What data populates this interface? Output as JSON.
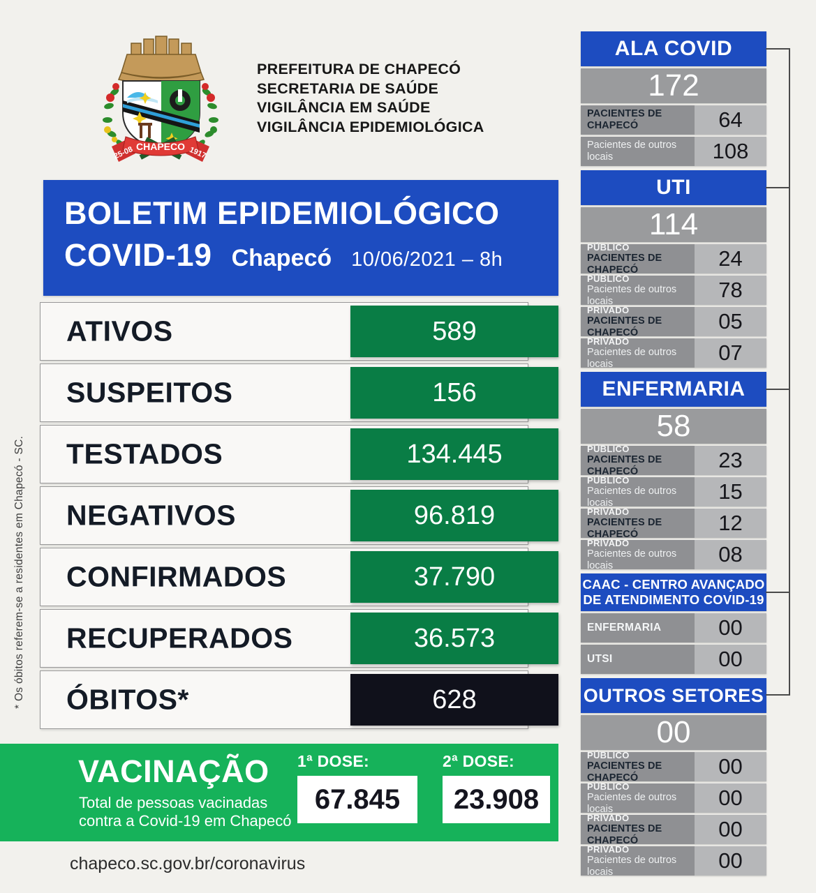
{
  "header": {
    "org_lines": [
      "PREFEITURA DE CHAPECÓ",
      "SECRETARIA DE SAÚDE",
      "VIGILÂNCIA EM SAÚDE",
      "VIGILÂNCIA EPIDEMIOLÓGICA"
    ],
    "logo": {
      "icon": "chapeco-coat-of-arms",
      "banner_text": "CHAPECO",
      "banner_left": "25-08",
      "banner_right": "1917"
    }
  },
  "banner": {
    "title_line1": "BOLETIM EPIDEMIOLÓGICO",
    "title_line2": "COVID-19",
    "city": "Chapecó",
    "datetime": "10/06/2021 – 8h"
  },
  "stats": {
    "rows": [
      {
        "label": "ATIVOS",
        "value": "589",
        "style": "green"
      },
      {
        "label": "SUSPEITOS",
        "value": "156",
        "style": "green"
      },
      {
        "label": "TESTADOS",
        "value": "134.445",
        "style": "green"
      },
      {
        "label": "NEGATIVOS",
        "value": "96.819",
        "style": "green"
      },
      {
        "label": "CONFIRMADOS",
        "value": "37.790",
        "style": "green"
      },
      {
        "label": "RECUPERADOS",
        "value": "36.573",
        "style": "green"
      },
      {
        "label": "ÓBITOS*",
        "value": "628",
        "style": "black"
      }
    ],
    "footnote": "* Os óbitos referem-se a residentes em Chapecó - SC."
  },
  "vaccination": {
    "title": "VACINAÇÃO",
    "subtitle_line1": "Total de pessoas vacinadas",
    "subtitle_line2": "contra a Covid-19 em Chapecó",
    "dose1_label": "1ª DOSE:",
    "dose1_value": "67.845",
    "dose2_label": "2ª DOSE:",
    "dose2_value": "23.908"
  },
  "footer": {
    "url": "chapeco.sc.gov.br/coronavirus"
  },
  "hospital": {
    "sections": [
      {
        "title": "ALA COVID",
        "total": "172",
        "rows": [
          {
            "label": "PACIENTES DE CHAPECÓ",
            "label_style": "dark",
            "value": "64"
          },
          {
            "label": "Pacientes de outros locais",
            "label_style": "light",
            "value": "108"
          }
        ]
      },
      {
        "title": "UTI",
        "total": "114",
        "rows": [
          {
            "tag": "PÚBLICO",
            "label": "PACIENTES DE CHAPECÓ",
            "label_style": "dark",
            "value": "24"
          },
          {
            "tag": "PÚBLICO",
            "label": "Pacientes de outros locais",
            "label_style": "light",
            "value": "78"
          },
          {
            "tag": "PRIVADO",
            "label": "PACIENTES DE CHAPECÓ",
            "label_style": "dark",
            "value": "05"
          },
          {
            "tag": "PRIVADO",
            "label": "Pacientes de outros locais",
            "label_style": "light",
            "value": "07"
          }
        ]
      },
      {
        "title": "ENFERMARIA",
        "total": "58",
        "rows": [
          {
            "tag": "PÚBLICO",
            "label": "PACIENTES DE CHAPECÓ",
            "label_style": "dark",
            "value": "23"
          },
          {
            "tag": "PÚBLICO",
            "label": "Pacientes de outros locais",
            "label_style": "light",
            "value": "15"
          },
          {
            "tag": "PRIVADO",
            "label": "PACIENTES DE CHAPECÓ",
            "label_style": "dark",
            "value": "12"
          },
          {
            "tag": "PRIVADO",
            "label": "Pacientes de outros locais",
            "label_style": "light",
            "value": "08"
          }
        ]
      },
      {
        "title": "CAAC - CENTRO AVANÇADO",
        "title2": "DE ATENDIMENTO COVID-19",
        "total": null,
        "rows": [
          {
            "label": "ENFERMARIA",
            "label_style": "bold",
            "value": "00"
          },
          {
            "label": "UTSI",
            "label_style": "bold",
            "value": "00"
          }
        ]
      },
      {
        "title": "OUTROS SETORES",
        "total": "00",
        "header_narrow": true,
        "rows": [
          {
            "tag": "PÚBLICO",
            "label": "PACIENTES DE CHAPECÓ",
            "label_style": "dark",
            "value": "00"
          },
          {
            "tag": "PÚBLICO",
            "label": "Pacientes de outros locais",
            "label_style": "light",
            "value": "00"
          },
          {
            "tag": "PRIVADO",
            "label": "PACIENTES DE CHAPECÓ",
            "label_style": "dark",
            "value": "00"
          },
          {
            "tag": "PRIVADO",
            "label": "Pacientes de outros locais",
            "label_style": "light",
            "value": "00"
          }
        ]
      }
    ]
  }
}
